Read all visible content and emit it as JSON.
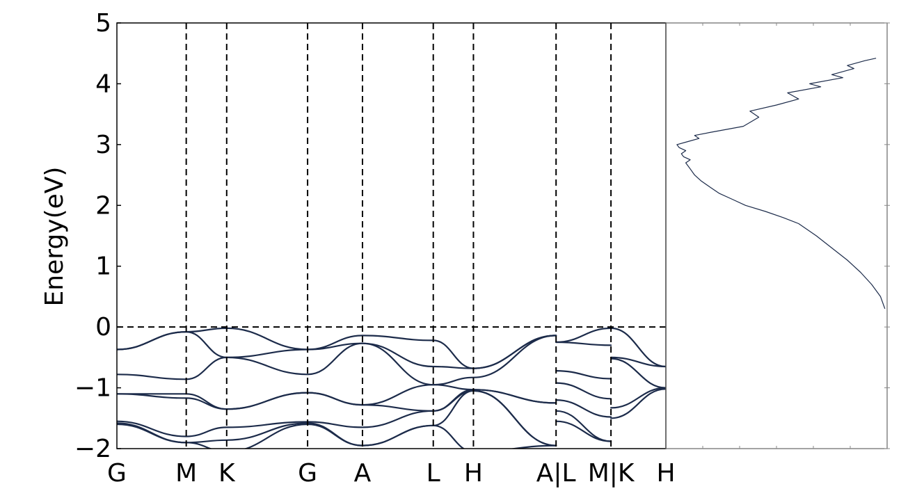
{
  "chart_data": [
    {
      "type": "line",
      "subtype": "band-structure",
      "title": "",
      "xlabel": "",
      "ylabel": "Energy(eV)",
      "ylim": [
        -2,
        5
      ],
      "yticks": [
        -2,
        -1,
        0,
        1,
        2,
        3,
        4,
        5
      ],
      "ytick_labels": [
        "−2",
        "−1",
        "0",
        "1",
        "2",
        "3",
        "4",
        "5"
      ],
      "fermi_level": 0,
      "grid": false,
      "line_color": "#1c2b4a",
      "kpath": [
        "G",
        "M",
        "K",
        "G",
        "A",
        "L",
        "H",
        "A|L",
        "M|K",
        "H"
      ],
      "kpath_positions": [
        0,
        1.2,
        1.9,
        3.3,
        4.25,
        5.475,
        6.17,
        7.6,
        8.55,
        9.5
      ],
      "segments": [
        {
          "x": [
            0,
            1.2,
            1.9,
            3.3,
            4.25,
            5.475,
            6.17,
            7.6
          ],
          "series": [
            {
              "values": [
                -0.37,
                -0.08,
                -0.02,
                -0.37,
                -0.14,
                -0.22,
                -0.68,
                -0.14
              ]
            },
            {
              "values": [
                -0.37,
                -0.08,
                -0.5,
                -0.37,
                -0.27,
                -0.65,
                -0.68,
                -0.14
              ]
            },
            {
              "values": [
                -0.78,
                -0.86,
                -0.5,
                -0.78,
                -0.27,
                -0.95,
                -0.83,
                -0.14
              ]
            },
            {
              "values": [
                -1.1,
                -1.1,
                -1.35,
                -1.08,
                -1.28,
                -0.95,
                -1.03,
                -1.25
              ]
            },
            {
              "values": [
                -1.1,
                -1.17,
                -1.35,
                -1.08,
                -1.28,
                -1.38,
                -1.03,
                -1.25
              ]
            },
            {
              "values": [
                -1.55,
                -1.8,
                -1.65,
                -1.56,
                -1.65,
                -1.38,
                -1.05,
                -1.95
              ]
            },
            {
              "values": [
                -1.58,
                -1.9,
                -1.86,
                -1.58,
                -1.95,
                -1.62,
                -1.05,
                -1.95
              ]
            },
            {
              "values": [
                -1.6,
                -1.9,
                -2.05,
                -1.6,
                -1.95,
                -1.62,
                -2.05,
                -1.95
              ]
            }
          ]
        },
        {
          "x": [
            7.6,
            8.55
          ],
          "series": [
            {
              "values": [
                -0.25,
                -0.02
              ]
            },
            {
              "values": [
                -0.25,
                -0.3
              ]
            },
            {
              "values": [
                -0.72,
                -0.85
              ]
            },
            {
              "values": [
                -0.92,
                -1.18
              ]
            },
            {
              "values": [
                -1.2,
                -1.48
              ]
            },
            {
              "values": [
                -1.38,
                -1.88
              ]
            },
            {
              "values": [
                -1.55,
                -1.88
              ]
            }
          ]
        },
        {
          "x": [
            8.55,
            9.5
          ],
          "series": [
            {
              "values": [
                -0.02,
                -0.65
              ]
            },
            {
              "values": [
                -0.5,
                -0.65
              ]
            },
            {
              "values": [
                -0.52,
                -1.0
              ]
            },
            {
              "values": [
                -1.33,
                -1.0
              ]
            },
            {
              "values": [
                -1.5,
                -1.02
              ]
            }
          ]
        }
      ]
    },
    {
      "type": "line",
      "subtype": "density-of-states",
      "title": "",
      "xlabel": "",
      "ylabel": "",
      "ylim": [
        -2,
        5
      ],
      "xlim": [
        0,
        1
      ],
      "grid": false,
      "line_color": "#1c2b4a",
      "series": [
        {
          "x": [
            0.99,
            0.97,
            0.93,
            0.88,
            0.82,
            0.75,
            0.68,
            0.6,
            0.53,
            0.45,
            0.36,
            0.3,
            0.24,
            0.2,
            0.16,
            0.13,
            0.11,
            0.09,
            0.11,
            0.08,
            0.07,
            0.09,
            0.06,
            0.05,
            0.1,
            0.15,
            0.13,
            0.2,
            0.35,
            0.42,
            0.38,
            0.5,
            0.6,
            0.55,
            0.7,
            0.65,
            0.8,
            0.75,
            0.85,
            0.82,
            0.9,
            0.95
          ],
          "y": [
            0.3,
            0.5,
            0.7,
            0.9,
            1.1,
            1.3,
            1.5,
            1.7,
            1.8,
            1.9,
            2.0,
            2.1,
            2.2,
            2.3,
            2.4,
            2.5,
            2.6,
            2.7,
            2.75,
            2.8,
            2.85,
            2.9,
            2.95,
            3.0,
            3.05,
            3.1,
            3.15,
            3.2,
            3.3,
            3.45,
            3.55,
            3.65,
            3.75,
            3.85,
            3.95,
            4.0,
            4.1,
            4.15,
            4.25,
            4.3,
            4.38,
            4.42
          ]
        }
      ]
    }
  ]
}
